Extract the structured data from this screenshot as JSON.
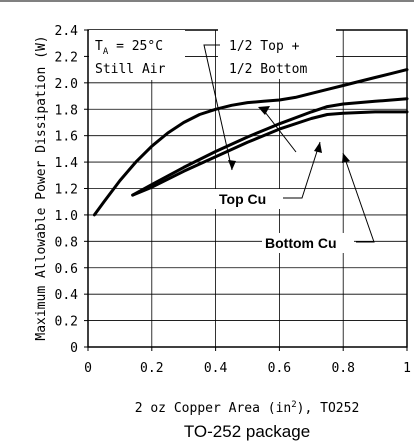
{
  "chart_data": {
    "type": "line",
    "ylabel": "Maximum Allowable Power Dissipation (W)",
    "xlabel": "2 oz Copper Area (in²), TO252",
    "caption": "TO-252 package",
    "xlim": [
      0,
      1
    ],
    "ylim": [
      0,
      2.4
    ],
    "x_ticks": [
      "0",
      "0.2",
      "0.4",
      "0.6",
      "0.8",
      "1"
    ],
    "y_ticks": [
      "0",
      "0.2",
      "0.4",
      "0.6",
      "0.8",
      "1.0",
      "1.2",
      "1.4",
      "1.6",
      "1.8",
      "2.0",
      "2.2",
      "2.4"
    ],
    "grid": true,
    "conditions": {
      "ta_symbol": "T",
      "ta_sub": "A",
      "ta_value": " = 25°C",
      "air": "Still Air"
    },
    "series": [
      {
        "name": "1/2 Top + 1/2 Bottom",
        "label_lines": [
          "1/2 Top +",
          "1/2 Bottom"
        ],
        "x": [
          0.02,
          0.05,
          0.1,
          0.15,
          0.2,
          0.25,
          0.3,
          0.35,
          0.4,
          0.45,
          0.5,
          0.55,
          0.6,
          0.65,
          0.7,
          0.75,
          0.8,
          0.85,
          0.9,
          0.95,
          1.0
        ],
        "y": [
          1.0,
          1.1,
          1.26,
          1.4,
          1.52,
          1.62,
          1.7,
          1.76,
          1.8,
          1.83,
          1.85,
          1.86,
          1.87,
          1.89,
          1.92,
          1.95,
          1.98,
          2.01,
          2.04,
          2.07,
          2.1
        ]
      },
      {
        "name": "Top Cu",
        "label_lines": [
          "Top Cu"
        ],
        "x": [
          0.14,
          0.2,
          0.3,
          0.4,
          0.5,
          0.6,
          0.7,
          0.75,
          0.8,
          0.9,
          1.0
        ],
        "y": [
          1.15,
          1.23,
          1.36,
          1.48,
          1.59,
          1.69,
          1.78,
          1.82,
          1.84,
          1.86,
          1.88
        ]
      },
      {
        "name": "Bottom Cu",
        "label_lines": [
          "Bottom Cu"
        ],
        "x": [
          0.14,
          0.2,
          0.3,
          0.4,
          0.5,
          0.6,
          0.7,
          0.75,
          0.8,
          0.9,
          1.0
        ],
        "y": [
          1.15,
          1.21,
          1.33,
          1.44,
          1.55,
          1.65,
          1.73,
          1.76,
          1.77,
          1.78,
          1.78
        ]
      }
    ]
  }
}
